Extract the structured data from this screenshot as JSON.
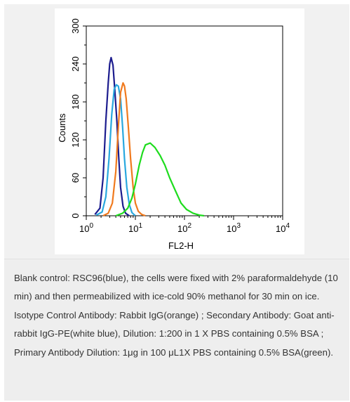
{
  "figure": {
    "caption": {
      "line1": "Blank control: RSC96(blue), the cells were fixed with 2% paraformaldehyde (10 min) and then permeabilized with ice-cold 90% methanol for 30 min on ice.",
      "line2": "Isotype Control Antibody: Rabbit IgG(orange) ; Secondary Antibody: Goat anti-rabbit IgG-PE(white blue), Dilution: 1:200 in 1 X PBS containing 0.5% BSA ; Primary Antibody Dilution: 1μg in 100 μL1X PBS containing 0.5% BSA(green)."
    }
  },
  "chart_data": {
    "type": "line",
    "xlabel": "FL2-H",
    "ylabel": "Counts",
    "x_scale": "log",
    "xlim": [
      1,
      10000
    ],
    "ylim": [
      0,
      300
    ],
    "x_ticks": [
      {
        "value": 1,
        "base": "10",
        "exp": "0"
      },
      {
        "value": 10,
        "base": "10",
        "exp": "1"
      },
      {
        "value": 100,
        "base": "10",
        "exp": "2"
      },
      {
        "value": 1000,
        "base": "10",
        "exp": "3"
      },
      {
        "value": 10000,
        "base": "10",
        "exp": "4"
      }
    ],
    "y_ticks": [
      0,
      60,
      120,
      180,
      240,
      300
    ],
    "grid": false,
    "series": [
      {
        "color": "#1c1c8e",
        "x": [
          1.5,
          1.9,
          2.2,
          2.5,
          2.8,
          3.0,
          3.2,
          3.5,
          3.8,
          4.2,
          4.6,
          5.0,
          5.6,
          6.3,
          7.5
        ],
        "y": [
          2,
          12,
          60,
          150,
          210,
          240,
          250,
          238,
          200,
          150,
          90,
          45,
          15,
          4,
          0
        ]
      },
      {
        "color": "#29a8df",
        "x": [
          1.6,
          2.1,
          2.5,
          2.9,
          3.3,
          3.7,
          4.1,
          4.5,
          5.0,
          5.5,
          6.0,
          6.7,
          7.5,
          8.5,
          10.0
        ],
        "y": [
          1,
          6,
          30,
          90,
          160,
          200,
          207,
          205,
          185,
          140,
          90,
          45,
          18,
          5,
          0
        ]
      },
      {
        "color": "#f07a1e",
        "x": [
          2.2,
          2.8,
          3.4,
          4.0,
          4.5,
          5.0,
          5.6,
          6.0,
          6.5,
          7.2,
          8.0,
          9.0,
          10.0,
          11.5,
          13.5,
          16.0
        ],
        "y": [
          0,
          4,
          20,
          70,
          140,
          195,
          210,
          205,
          185,
          140,
          90,
          45,
          20,
          7,
          2,
          0
        ]
      },
      {
        "color": "#1edc1e",
        "x": [
          4.0,
          5.5,
          7.0,
          8.5,
          10.0,
          12.0,
          14.0,
          16.0,
          20.0,
          25.0,
          32.0,
          40.0,
          50.0,
          65.0,
          85.0,
          110.0,
          150.0,
          200.0,
          250.0
        ],
        "y": [
          0,
          4,
          12,
          28,
          50,
          80,
          100,
          112,
          115,
          108,
          95,
          80,
          60,
          40,
          20,
          10,
          4,
          1,
          0
        ]
      }
    ]
  }
}
